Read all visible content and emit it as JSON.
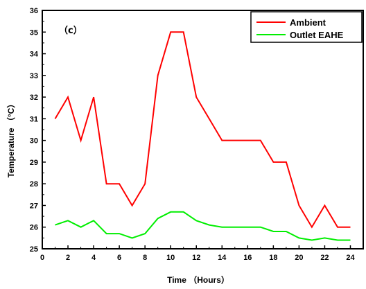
{
  "chart_data": {
    "type": "line",
    "panel_label": "（c）",
    "xlabel": "Time （Hours）",
    "ylabel": "Temperature （°C）",
    "xlim": [
      0,
      25
    ],
    "ylim": [
      25,
      36
    ],
    "x_ticks": [
      0,
      2,
      4,
      6,
      8,
      10,
      12,
      14,
      16,
      18,
      20,
      22,
      24
    ],
    "y_ticks": [
      25,
      26,
      27,
      28,
      29,
      30,
      31,
      32,
      33,
      34,
      35,
      36
    ],
    "x": [
      1,
      2,
      3,
      4,
      5,
      6,
      7,
      8,
      9,
      10,
      11,
      12,
      13,
      14,
      15,
      16,
      17,
      18,
      19,
      20,
      21,
      22,
      23,
      24
    ],
    "series": [
      {
        "name": "Ambient",
        "color": "#ff0000",
        "values": [
          31,
          32,
          30,
          32,
          28,
          28,
          27,
          28,
          33,
          35,
          35,
          32,
          31,
          30,
          30,
          30,
          30,
          29,
          29,
          27,
          26,
          27,
          26,
          26
        ]
      },
      {
        "name": "Outlet EAHE",
        "color": "#00ee00",
        "values": [
          26.1,
          26.3,
          26.0,
          26.3,
          25.7,
          25.7,
          25.5,
          25.7,
          26.4,
          26.7,
          26.7,
          26.3,
          26.1,
          26.0,
          26.0,
          26.0,
          26.0,
          25.8,
          25.8,
          25.5,
          25.4,
          25.5,
          25.4,
          25.4
        ]
      }
    ],
    "legend_position": "top-right",
    "grid": false
  }
}
